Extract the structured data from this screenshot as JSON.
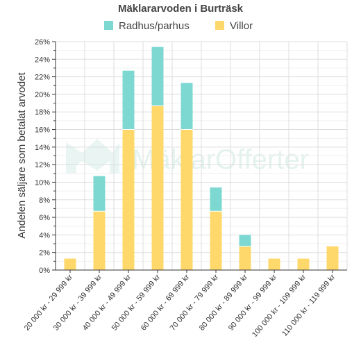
{
  "chart_data": {
    "type": "bar",
    "stacked": true,
    "title": "Mäklararvoden i Burträsk",
    "ylabel": "Andelen säljare som betalat arvodet",
    "xlabel": "",
    "ylim": [
      0,
      26
    ],
    "y_ticks": [
      0,
      2,
      4,
      6,
      8,
      10,
      12,
      14,
      16,
      18,
      20,
      22,
      24,
      26
    ],
    "y_tick_suffix": "%",
    "grid": true,
    "legend_position": "top",
    "categories": [
      "20 000 kr - 29 999 kr",
      "30 000 kr - 39 999 kr",
      "40 000 kr - 49 999 kr",
      "50 000 kr - 59 999 kr",
      "60 000 kr - 69 999 kr",
      "70 000 kr - 79 999 kr",
      "80 000 kr - 89 999 kr",
      "90 000 kr - 99 999 kr",
      "100 000 kr - 109 999 kr",
      "110 000 kr - 119 999 kr"
    ],
    "series": [
      {
        "name": "Villor",
        "color": "#ffd86b",
        "values": [
          1.3,
          6.7,
          16.0,
          18.7,
          16.0,
          6.7,
          2.7,
          1.3,
          1.3,
          2.7
        ]
      },
      {
        "name": "Radhus/parhus",
        "color": "#7ed8d2",
        "values": [
          0,
          4.0,
          6.7,
          6.7,
          5.3,
          2.7,
          1.3,
          0,
          0,
          0
        ]
      }
    ],
    "legend_order": [
      "Radhus/parhus",
      "Villor"
    ],
    "watermark": "MäklarOfferter"
  }
}
